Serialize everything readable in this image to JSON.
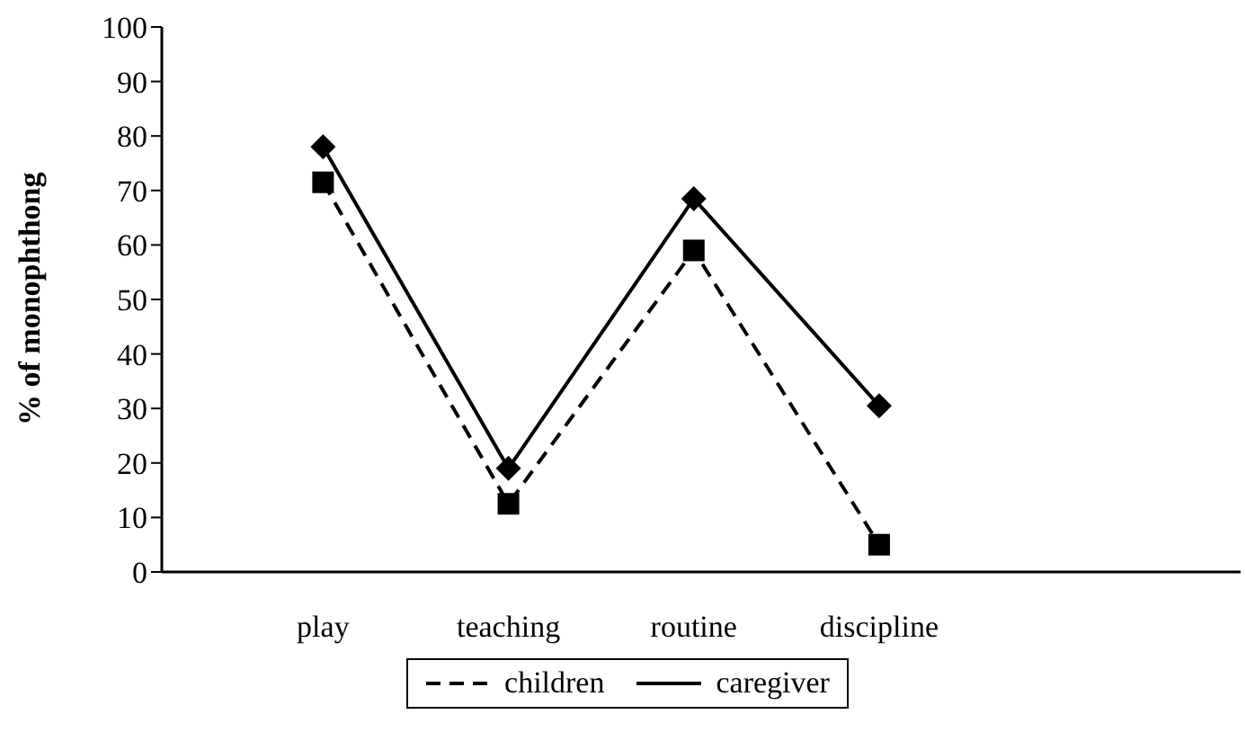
{
  "chart_data": {
    "type": "line",
    "ylabel": "% of monophthong",
    "categories": [
      "play",
      "teaching",
      "routine",
      "discipline"
    ],
    "series": [
      {
        "name": "children",
        "color": "#000000",
        "values": [
          71.5,
          12.5,
          59,
          5
        ],
        "line_style": "dashed",
        "marker": "square"
      },
      {
        "name": "caregiver",
        "color": "#000000",
        "values": [
          78,
          19,
          68.5,
          30.5
        ],
        "line_style": "solid",
        "marker": "diamond"
      }
    ],
    "ylim": [
      0,
      100
    ],
    "yticks": [
      0,
      10,
      20,
      30,
      40,
      50,
      60,
      70,
      80,
      90,
      100
    ],
    "grid": false,
    "legend": "bottom"
  }
}
